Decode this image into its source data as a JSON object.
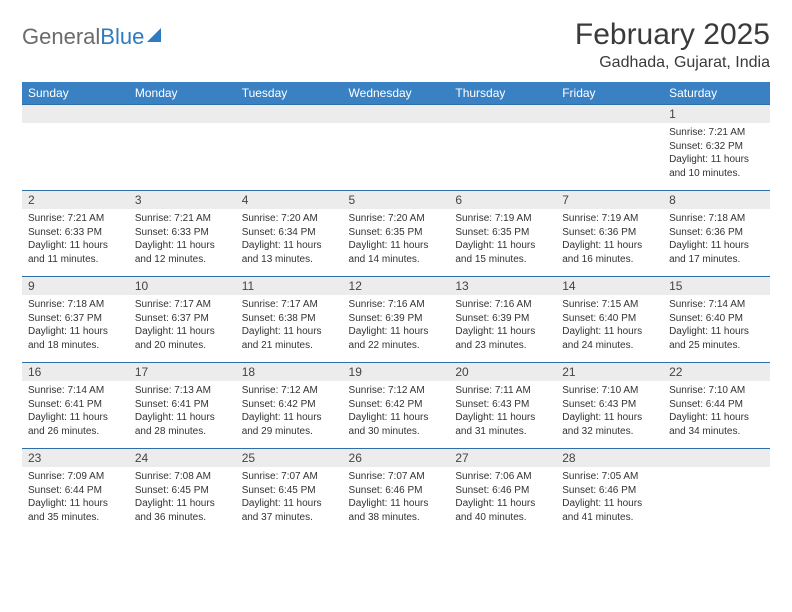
{
  "logo": {
    "part1": "General",
    "part2": "Blue"
  },
  "header": {
    "title": "February 2025",
    "location": "Gadhada, Gujarat, India"
  },
  "weekdays": [
    "Sunday",
    "Monday",
    "Tuesday",
    "Wednesday",
    "Thursday",
    "Friday",
    "Saturday"
  ],
  "colors": {
    "header_bg": "#3a81c4",
    "header_text": "#ffffff",
    "daynum_bg": "#ececec",
    "row_border": "#2f6fa8",
    "logo_gray": "#6b6b6b",
    "logo_blue": "#2f7bbf"
  },
  "grid": [
    [
      null,
      null,
      null,
      null,
      null,
      null,
      {
        "n": "1",
        "sr": "7:21 AM",
        "ss": "6:32 PM",
        "dl": "11 hours and 10 minutes."
      }
    ],
    [
      {
        "n": "2",
        "sr": "7:21 AM",
        "ss": "6:33 PM",
        "dl": "11 hours and 11 minutes."
      },
      {
        "n": "3",
        "sr": "7:21 AM",
        "ss": "6:33 PM",
        "dl": "11 hours and 12 minutes."
      },
      {
        "n": "4",
        "sr": "7:20 AM",
        "ss": "6:34 PM",
        "dl": "11 hours and 13 minutes."
      },
      {
        "n": "5",
        "sr": "7:20 AM",
        "ss": "6:35 PM",
        "dl": "11 hours and 14 minutes."
      },
      {
        "n": "6",
        "sr": "7:19 AM",
        "ss": "6:35 PM",
        "dl": "11 hours and 15 minutes."
      },
      {
        "n": "7",
        "sr": "7:19 AM",
        "ss": "6:36 PM",
        "dl": "11 hours and 16 minutes."
      },
      {
        "n": "8",
        "sr": "7:18 AM",
        "ss": "6:36 PM",
        "dl": "11 hours and 17 minutes."
      }
    ],
    [
      {
        "n": "9",
        "sr": "7:18 AM",
        "ss": "6:37 PM",
        "dl": "11 hours and 18 minutes."
      },
      {
        "n": "10",
        "sr": "7:17 AM",
        "ss": "6:37 PM",
        "dl": "11 hours and 20 minutes."
      },
      {
        "n": "11",
        "sr": "7:17 AM",
        "ss": "6:38 PM",
        "dl": "11 hours and 21 minutes."
      },
      {
        "n": "12",
        "sr": "7:16 AM",
        "ss": "6:39 PM",
        "dl": "11 hours and 22 minutes."
      },
      {
        "n": "13",
        "sr": "7:16 AM",
        "ss": "6:39 PM",
        "dl": "11 hours and 23 minutes."
      },
      {
        "n": "14",
        "sr": "7:15 AM",
        "ss": "6:40 PM",
        "dl": "11 hours and 24 minutes."
      },
      {
        "n": "15",
        "sr": "7:14 AM",
        "ss": "6:40 PM",
        "dl": "11 hours and 25 minutes."
      }
    ],
    [
      {
        "n": "16",
        "sr": "7:14 AM",
        "ss": "6:41 PM",
        "dl": "11 hours and 26 minutes."
      },
      {
        "n": "17",
        "sr": "7:13 AM",
        "ss": "6:41 PM",
        "dl": "11 hours and 28 minutes."
      },
      {
        "n": "18",
        "sr": "7:12 AM",
        "ss": "6:42 PM",
        "dl": "11 hours and 29 minutes."
      },
      {
        "n": "19",
        "sr": "7:12 AM",
        "ss": "6:42 PM",
        "dl": "11 hours and 30 minutes."
      },
      {
        "n": "20",
        "sr": "7:11 AM",
        "ss": "6:43 PM",
        "dl": "11 hours and 31 minutes."
      },
      {
        "n": "21",
        "sr": "7:10 AM",
        "ss": "6:43 PM",
        "dl": "11 hours and 32 minutes."
      },
      {
        "n": "22",
        "sr": "7:10 AM",
        "ss": "6:44 PM",
        "dl": "11 hours and 34 minutes."
      }
    ],
    [
      {
        "n": "23",
        "sr": "7:09 AM",
        "ss": "6:44 PM",
        "dl": "11 hours and 35 minutes."
      },
      {
        "n": "24",
        "sr": "7:08 AM",
        "ss": "6:45 PM",
        "dl": "11 hours and 36 minutes."
      },
      {
        "n": "25",
        "sr": "7:07 AM",
        "ss": "6:45 PM",
        "dl": "11 hours and 37 minutes."
      },
      {
        "n": "26",
        "sr": "7:07 AM",
        "ss": "6:46 PM",
        "dl": "11 hours and 38 minutes."
      },
      {
        "n": "27",
        "sr": "7:06 AM",
        "ss": "6:46 PM",
        "dl": "11 hours and 40 minutes."
      },
      {
        "n": "28",
        "sr": "7:05 AM",
        "ss": "6:46 PM",
        "dl": "11 hours and 41 minutes."
      },
      null
    ]
  ],
  "labels": {
    "sunrise": "Sunrise:",
    "sunset": "Sunset:",
    "daylight": "Daylight:"
  }
}
